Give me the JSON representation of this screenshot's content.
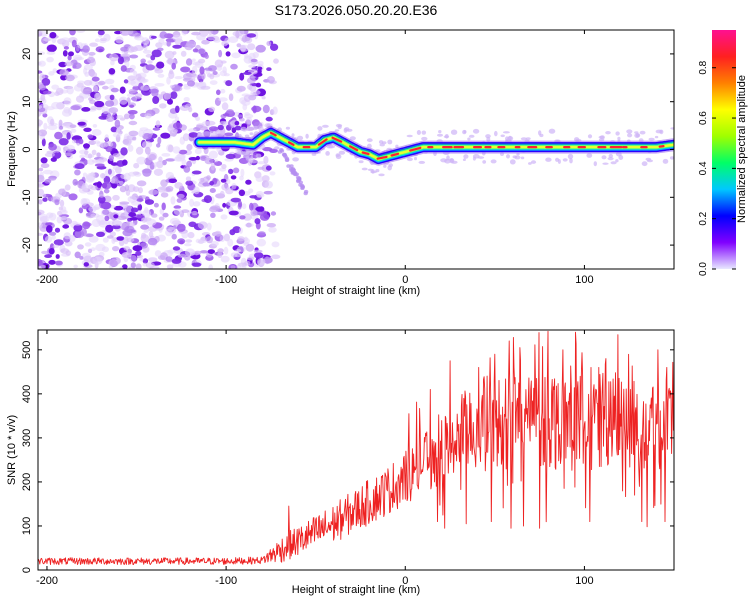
{
  "title": "S173.2026.050.20.20.E36",
  "chart_data": [
    {
      "type": "heatmap",
      "name": "spectrogram",
      "xlabel": "Height of straight line (km)",
      "ylabel": "Frequency (Hz)",
      "xlim": [
        -205,
        150
      ],
      "ylim": [
        -25,
        25
      ],
      "xticks": [
        -200,
        -100,
        0,
        100
      ],
      "yticks": [
        -20,
        -10,
        0,
        10,
        20
      ],
      "noise_region_x": [
        -205,
        -80
      ],
      "ridge_start_x": -115,
      "ridge": {
        "x": [
          -115,
          -95,
          -85,
          -80,
          -75,
          -70,
          -65,
          -60,
          -55,
          -50,
          -45,
          -40,
          -35,
          -30,
          -25,
          -20,
          -15,
          -10,
          -5,
          0,
          5,
          10,
          15,
          20,
          30,
          40,
          60,
          80,
          100,
          120,
          140,
          150
        ],
        "y": [
          1.5,
          1.5,
          1.0,
          2.5,
          3.5,
          2.5,
          1.5,
          0.5,
          0.5,
          0.5,
          2.0,
          2.5,
          1.5,
          0.5,
          -0.5,
          -1.0,
          -2.0,
          -1.5,
          -1.0,
          -0.5,
          0.0,
          0.5,
          0.5,
          0.5,
          0.5,
          0.5,
          0.5,
          0.5,
          0.5,
          0.5,
          0.5,
          1.0
        ]
      },
      "branch": {
        "x": [
          -70,
          -65,
          -60,
          -55
        ],
        "y": [
          0,
          -3,
          -6,
          -9
        ]
      },
      "colorbar": {
        "label": "Normalized spectral amplitude",
        "ticks": [
          0.0,
          0.2,
          0.4,
          0.6,
          0.8
        ],
        "tick_labels": [
          "0.0",
          "0.2",
          "0.4",
          "0.6",
          "0.8"
        ],
        "range": [
          0,
          0.95
        ],
        "stops": [
          "#e8e8ff",
          "#8000ff",
          "#0000ff",
          "#00c8ff",
          "#00ff66",
          "#a0ff00",
          "#ffff00",
          "#ff8000",
          "#ff2020",
          "#ff1090"
        ]
      }
    },
    {
      "type": "line",
      "name": "snr",
      "xlabel": "Height of straight line (km)",
      "ylabel": "SNR (10 * v/v)",
      "xlim": [
        -205,
        150
      ],
      "ylim": [
        0,
        545
      ],
      "xticks": [
        -200,
        -100,
        0,
        100
      ],
      "yticks": [
        0,
        100,
        200,
        300,
        400,
        500
      ],
      "color": "#ee2222",
      "envelope": {
        "x": [
          -205,
          -150,
          -100,
          -80,
          -70,
          -60,
          -50,
          -40,
          -30,
          -20,
          -10,
          0,
          10,
          20,
          30,
          40,
          60,
          80,
          100,
          120,
          140,
          150
        ],
        "y": [
          20,
          20,
          20,
          22,
          45,
          65,
          85,
          105,
          130,
          155,
          180,
          210,
          240,
          270,
          300,
          330,
          340,
          345,
          340,
          330,
          335,
          340
        ]
      },
      "noise_amplitude": {
        "x": [
          -205,
          -80,
          -70,
          -40,
          0,
          20,
          40,
          80,
          150
        ],
        "y": [
          8,
          8,
          30,
          45,
          60,
          75,
          110,
          120,
          110
        ]
      },
      "spikes": [
        {
          "x": -65,
          "y": 145
        },
        {
          "x": 2,
          "y": 355
        },
        {
          "x": 14,
          "y": 410
        },
        {
          "x": 25,
          "y": 475
        },
        {
          "x": 41,
          "y": 460
        },
        {
          "x": 50,
          "y": 490
        },
        {
          "x": 58,
          "y": 520
        },
        {
          "x": 64,
          "y": 505
        },
        {
          "x": 88,
          "y": 500
        },
        {
          "x": 95,
          "y": 540
        },
        {
          "x": 108,
          "y": 460
        },
        {
          "x": 112,
          "y": 480
        },
        {
          "x": 141,
          "y": 500
        },
        {
          "x": 146,
          "y": 460
        }
      ],
      "dips": [
        {
          "x": 18,
          "y": 110
        },
        {
          "x": 22,
          "y": 95
        },
        {
          "x": 34,
          "y": 105
        },
        {
          "x": 48,
          "y": 110
        },
        {
          "x": 58,
          "y": 95
        },
        {
          "x": 66,
          "y": 100
        },
        {
          "x": 75,
          "y": 95
        },
        {
          "x": 88,
          "y": 110
        },
        {
          "x": 95,
          "y": 90
        },
        {
          "x": 103,
          "y": 110
        },
        {
          "x": 112,
          "y": 110
        },
        {
          "x": 128,
          "y": 170
        },
        {
          "x": 132,
          "y": 110
        },
        {
          "x": 145,
          "y": 110
        }
      ]
    }
  ]
}
